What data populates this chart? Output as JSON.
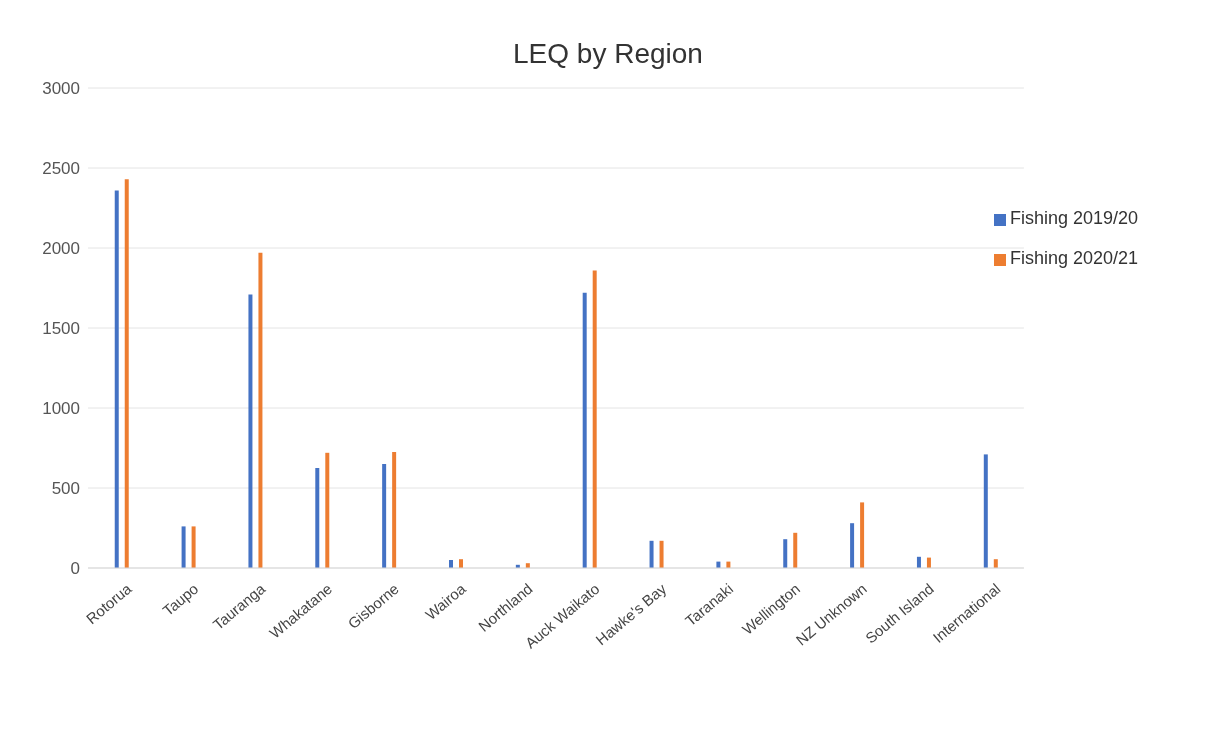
{
  "chart_data": {
    "type": "bar",
    "title": "LEQ by Region",
    "categories": [
      "Rotorua",
      "Taupo",
      "Tauranga",
      "Whakatane",
      "Gisborne",
      "Wairoa",
      "Northland",
      "Auck Waikato",
      "Hawke's Bay",
      "Taranaki",
      "Wellington",
      "NZ Unknown",
      "South Island",
      "International"
    ],
    "series": [
      {
        "name": "Fishing 2019/20",
        "color": "#4472c4",
        "values": [
          2360,
          260,
          1710,
          625,
          650,
          50,
          20,
          1720,
          170,
          40,
          180,
          280,
          70,
          710
        ]
      },
      {
        "name": "Fishing 2020/21",
        "color": "#ed7d31",
        "values": [
          2430,
          260,
          1970,
          720,
          725,
          55,
          30,
          1860,
          170,
          40,
          220,
          410,
          65,
          55
        ]
      }
    ],
    "ylim": [
      0,
      3000
    ],
    "yticks": [
      0,
      500,
      1000,
      1500,
      2000,
      2500,
      3000
    ],
    "grid": "y",
    "legend": "top right"
  }
}
